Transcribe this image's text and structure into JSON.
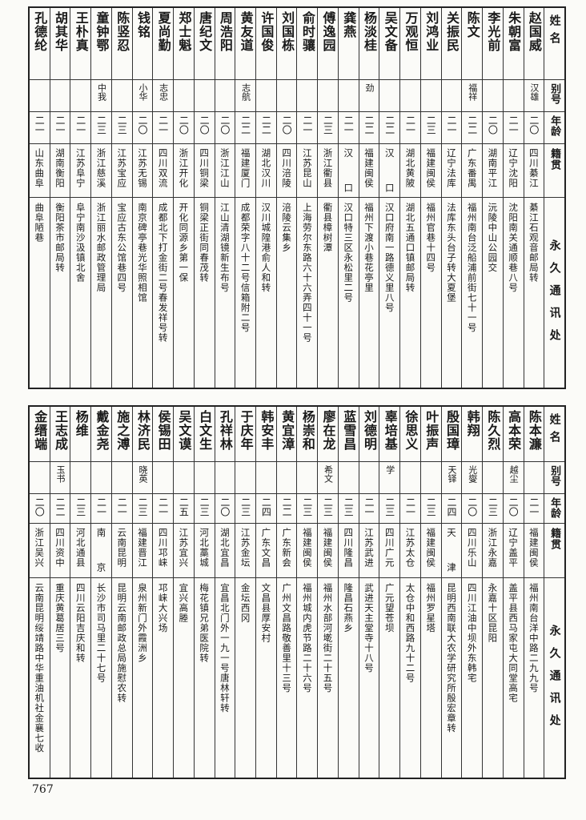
{
  "headers": {
    "name": "姓名",
    "alias": "别号",
    "age": "年龄",
    "native": "籍贯",
    "address": "永久通讯处"
  },
  "top_table": [
    {
      "name": "赵国威",
      "alias": "汉雄",
      "age": "二〇",
      "native": "四川綦江",
      "address": "綦江石观音邮局转"
    },
    {
      "name": "朱朝富",
      "alias": "",
      "age": "二一",
      "native": "辽宁沈阳",
      "address": "沈阳南关通顺巷八号"
    },
    {
      "name": "李光前",
      "alias": "",
      "age": "二〇",
      "native": "湖南平江",
      "address": "沅陵中山公园交"
    },
    {
      "name": "陈文",
      "alias": "福祥",
      "age": "二二",
      "native": "广东番禺",
      "address": "福州南台泛船浦前街七十一号"
    },
    {
      "name": "关振民",
      "alias": "",
      "age": "二一",
      "native": "辽宁法库",
      "address": "法库东头台子转大夏堡"
    },
    {
      "name": "刘鸿业",
      "alias": "",
      "age": "二三",
      "native": "福建闽侯",
      "address": "福州官巷十四号"
    },
    {
      "name": "万观恒",
      "alias": "",
      "age": "二一",
      "native": "湖北黄陂",
      "address": "湖北五通口镇邮局转"
    },
    {
      "name": "吴文备",
      "alias": "",
      "age": "二二",
      "native": "汉口",
      "address": "汉口府南一路德义里八号"
    },
    {
      "name": "杨淡桂",
      "alias": "劲",
      "age": "二二",
      "native": "福建闽侯",
      "address": "福州下渡小巷花亭里"
    },
    {
      "name": "龚燕",
      "alias": "",
      "age": "二一",
      "native": "汉口",
      "address": "汉口特三区永松里二号"
    },
    {
      "name": "傅逸园",
      "alias": "",
      "age": "二三",
      "native": "浙江衢县",
      "address": "衢县樟树潭"
    },
    {
      "name": "俞时骧",
      "alias": "",
      "age": "二一",
      "native": "江苏昆山",
      "address": "上海劳尔东路六十六弄四十一号"
    },
    {
      "name": "刘国栋",
      "alias": "",
      "age": "二〇",
      "native": "四川涪陵",
      "address": "涪陵云集乡"
    },
    {
      "name": "许国俊",
      "alias": "",
      "age": "二二",
      "native": "湖北汉川",
      "address": "汉川城隍港俞人和转"
    },
    {
      "name": "黄友道",
      "alias": "志航",
      "age": "二二",
      "native": "福建厦门",
      "address": "成都荣字八十二号信箱附二号"
    },
    {
      "name": "周浩阳",
      "alias": "",
      "age": "二〇",
      "native": "浙江江山",
      "address": "江山清湖镜新生布号"
    },
    {
      "name": "唐纪文",
      "alias": "",
      "age": "二〇",
      "native": "四川铜梁",
      "address": "铜梁正街同春茂转"
    },
    {
      "name": "郑士魁",
      "alias": "",
      "age": "二〇",
      "native": "浙江开化",
      "address": "开化同源乡第一保"
    },
    {
      "name": "夏尚勤",
      "alias": "志忠",
      "age": "二一",
      "native": "四川双流",
      "address": "成都北下打金街二号春发祥号转"
    },
    {
      "name": "钱铭",
      "alias": "小华",
      "age": "二〇",
      "native": "江苏无锡",
      "address": "南京碑亭巷光华照相馆"
    },
    {
      "name": "陈竖忍",
      "alias": "",
      "age": "二三",
      "native": "江苏宝应",
      "address": "宝应古东公馆巷四号"
    },
    {
      "name": "童钟鄂",
      "alias": "中我",
      "age": "二三",
      "native": "浙江慈溪",
      "address": "浙江丽水邮政管理局"
    },
    {
      "name": "王朴真",
      "alias": "",
      "age": "二一",
      "native": "江苏阜宁",
      "address": "阜宁南沙汲镇北舍"
    },
    {
      "name": "胡其华",
      "alias": "",
      "age": "二一",
      "native": "湖南衡阳",
      "address": "衡阳茶市邮局转"
    },
    {
      "name": "孔德纶",
      "alias": "",
      "age": "二一",
      "native": "山东曲阜",
      "address": "曲阜陋巷"
    }
  ],
  "bottom_table": [
    {
      "name": "陈本濂",
      "alias": "",
      "age": "二一",
      "native": "福建闽侯",
      "address": "福州南台洋中路二九九号"
    },
    {
      "name": "高本荣",
      "alias": "越尘",
      "age": "二〇",
      "native": "辽宁盖平",
      "address": "盖平县西马家屯大同堂高宅"
    },
    {
      "name": "陈久烈",
      "alias": "",
      "age": "二三",
      "native": "浙江永嘉",
      "address": "永嘉十区昆阳"
    },
    {
      "name": "韩翔",
      "alias": "光燮",
      "age": "二〇",
      "native": "四川乐山",
      "address": "四川江油中坝外东韩宅"
    },
    {
      "name": "殷国璋",
      "alias": "天铎",
      "age": "二四",
      "native": "天津",
      "address": "昆明西南联大农学研究所殷宏章转"
    },
    {
      "name": "叶振声",
      "alias": "",
      "age": "二三",
      "native": "福建闽侯",
      "address": "福州罗星塔"
    },
    {
      "name": "徐思义",
      "alias": "",
      "age": "二一",
      "native": "江苏太仓",
      "address": "太仓中和西路九十二号"
    },
    {
      "name": "辜培基",
      "alias": "学",
      "age": "二三",
      "native": "四川广元",
      "address": "广元望苍坝"
    },
    {
      "name": "刘德明",
      "alias": "",
      "age": "二一",
      "native": "江苏武进",
      "address": "武进天主堂寺十八号"
    },
    {
      "name": "蓝雪昌",
      "alias": "",
      "age": "二三",
      "native": "四川隆昌",
      "address": "隆昌石燕乡"
    },
    {
      "name": "廖在龙",
      "alias": "希文",
      "age": "二三",
      "native": "福建闽侯",
      "address": "福州水部河墘街二十五号"
    },
    {
      "name": "杨崇和",
      "alias": "",
      "age": "二三",
      "native": "福建闽侯",
      "address": "福州城内虎节路二十六号"
    },
    {
      "name": "黄宜漳",
      "alias": "",
      "age": "二二",
      "native": "广东新会",
      "address": "广州文昌路敬善里十三号"
    },
    {
      "name": "韩安丰",
      "alias": "",
      "age": "二四",
      "native": "广东文昌",
      "address": "文昌县厚安村"
    },
    {
      "name": "于庆年",
      "alias": "",
      "age": "二三",
      "native": "江苏金坛",
      "address": "金坛西冈"
    },
    {
      "name": "孔祥林",
      "alias": "",
      "age": "二〇",
      "native": "湖北宜昌",
      "address": "宜昌北门外一九一号唐林轩转"
    },
    {
      "name": "白文生",
      "alias": "",
      "age": "二三",
      "native": "河北藁城",
      "address": "梅花镇兄弟医院转"
    },
    {
      "name": "吴文谟",
      "alias": "",
      "age": "二五",
      "native": "江苏宜兴",
      "address": "宜兴高塍"
    },
    {
      "name": "侯锡田",
      "alias": "",
      "age": "二一",
      "native": "四川邛崃",
      "address": "邛崃大兴场"
    },
    {
      "name": "林济民",
      "alias": "晓英",
      "age": "二三",
      "native": "福建晋江",
      "address": "泉州新门外霞洲乡"
    },
    {
      "name": "施之溥",
      "alias": "",
      "age": "二一",
      "native": "云南昆明",
      "address": "昆明云南邮政总局施慰农转"
    },
    {
      "name": "戴金尧",
      "alias": "",
      "age": "二一",
      "native": "南京",
      "address": "长沙市司马里二十七号"
    },
    {
      "name": "杨维",
      "alias": "",
      "age": "二三",
      "native": "河北通县",
      "address": "四川云阳吉庆和转"
    },
    {
      "name": "王志成",
      "alias": "玉书",
      "age": "二二",
      "native": "四川资中",
      "address": "重庆黄葛居三号"
    },
    {
      "name": "金缙端",
      "alias": "",
      "age": "二〇",
      "native": "浙江吴兴",
      "address": "云南昆明绥靖路中华重油机社金襄七收"
    }
  ],
  "page_number": "767"
}
